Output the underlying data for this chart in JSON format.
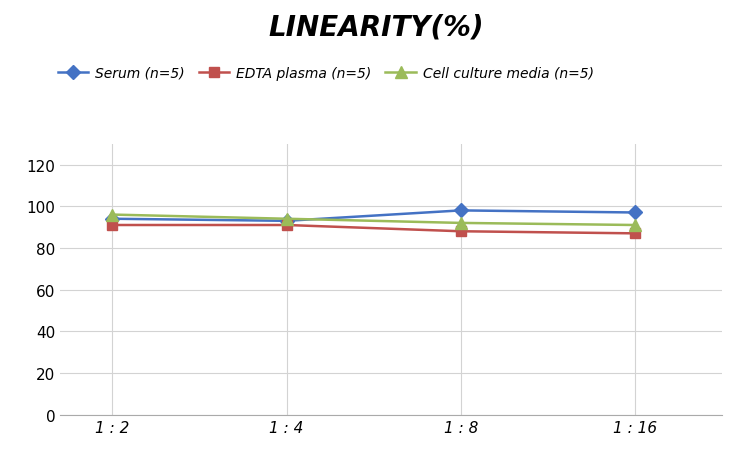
{
  "title": "LINEARITY(%)",
  "x_labels": [
    "1 : 2",
    "1 : 4",
    "1 : 8",
    "1 : 16"
  ],
  "x_positions": [
    0,
    1,
    2,
    3
  ],
  "series": [
    {
      "label": "Serum (n=5)",
      "values": [
        94,
        93,
        98,
        97
      ],
      "color": "#4472C4",
      "marker": "D",
      "marker_size": 7,
      "linewidth": 1.8
    },
    {
      "label": "EDTA plasma (n=5)",
      "values": [
        91,
        91,
        88,
        87
      ],
      "color": "#C0504D",
      "marker": "s",
      "marker_size": 7,
      "linewidth": 1.8
    },
    {
      "label": "Cell culture media (n=5)",
      "values": [
        96,
        94,
        92,
        91
      ],
      "color": "#9BBB59",
      "marker": "^",
      "marker_size": 8,
      "linewidth": 1.8
    }
  ],
  "ylim": [
    0,
    130
  ],
  "yticks": [
    0,
    20,
    40,
    60,
    80,
    100,
    120
  ],
  "background_color": "#FFFFFF",
  "grid_color": "#D3D3D3",
  "title_fontsize": 20,
  "legend_fontsize": 10,
  "tick_fontsize": 11
}
